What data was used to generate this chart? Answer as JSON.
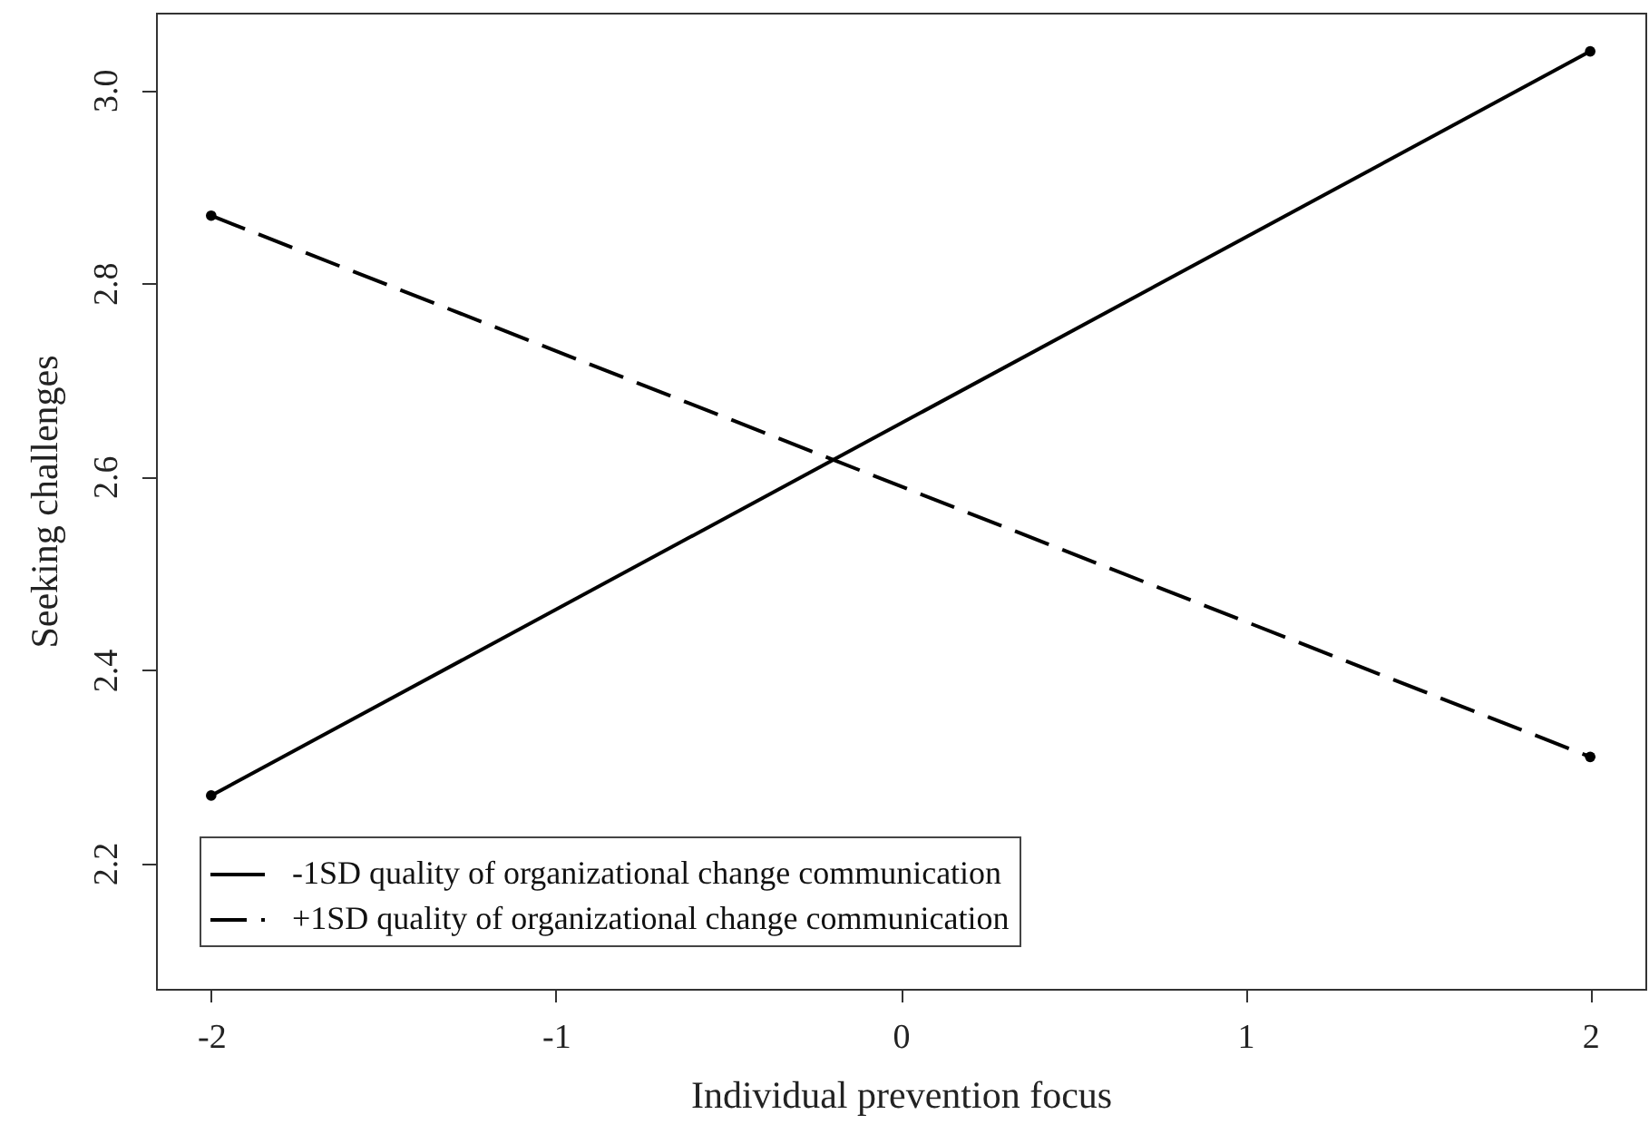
{
  "chart_data": {
    "type": "line",
    "xlabel": "Individual prevention focus",
    "ylabel": "Seeking challenges",
    "x": [
      -2,
      2
    ],
    "series": [
      {
        "name": "-1SD quality of organizational change communication",
        "color": "#000000",
        "values": [
          2.27,
          3.04
        ],
        "line_style": "solid"
      },
      {
        "name": "+1SD quality of organizational change communication",
        "color": "#000000",
        "values": [
          2.87,
          2.31
        ],
        "line_style": "dashed"
      }
    ],
    "xlim": [
      -2.16,
      2.16
    ],
    "ylim": [
      2.07,
      3.08
    ],
    "xticks": [
      -2,
      -1,
      0,
      1,
      2
    ],
    "yticks": [
      2.2,
      2.4,
      2.6,
      2.8,
      {
        "value": 3,
        "label": "3.0"
      }
    ],
    "grid": false,
    "legend": "bottom left",
    "marker": "circle"
  }
}
